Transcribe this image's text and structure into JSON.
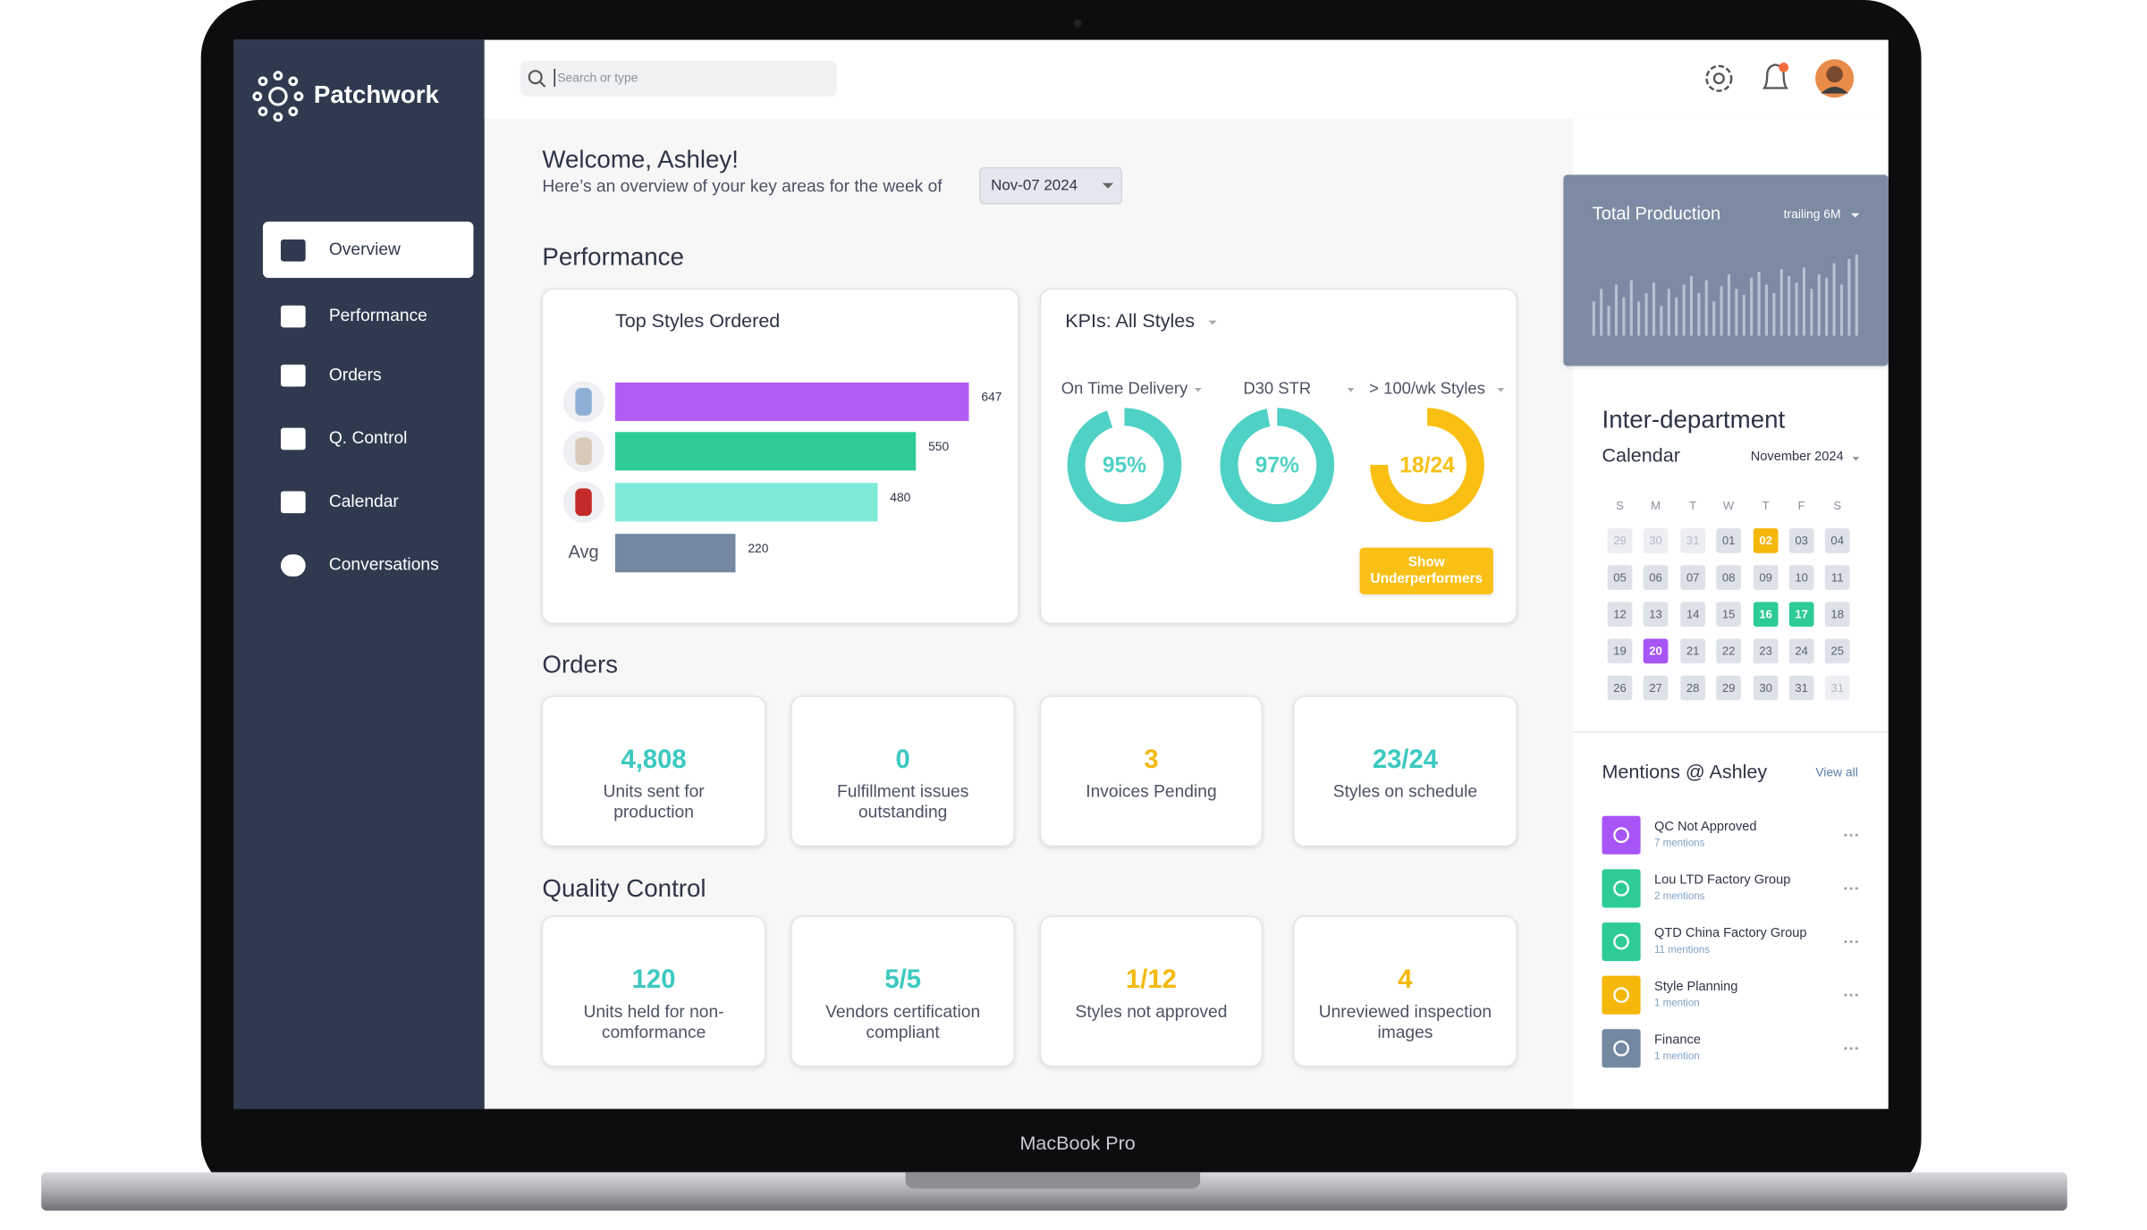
{
  "device_label": "MacBook Pro",
  "sidebar": {
    "brand": "Patchwork",
    "nav": [
      "Overview",
      "Performance",
      "Orders",
      "Q. Control",
      "Calendar",
      "Conversations"
    ]
  },
  "topbar": {
    "search_placeholder": "Search or type"
  },
  "welcome": {
    "title": "Welcome, Ashley!",
    "subtitle": "Here’s an overview of your key areas for the week of",
    "week": "Nov-07 2024"
  },
  "performance": {
    "heading": "Performance",
    "top_styles": {
      "type": "bar",
      "title": "Top Styles Ordered",
      "categories": [
        null,
        null,
        null,
        "Avg"
      ],
      "values": [
        647,
        550,
        480,
        220
      ],
      "colors": [
        "#b25cf6",
        "#2ecc95",
        "#7eebd9",
        "#7488a2"
      ]
    },
    "kpis": {
      "title": "KPIs: All Styles",
      "items": [
        {
          "label": "On Time Delivery",
          "value": 95,
          "max": 100,
          "value_label": "95%",
          "color": "#4fd1c5"
        },
        {
          "label": "D30 STR",
          "value": 97,
          "max": 100,
          "value_label": "97%",
          "color": "#4fd1c5"
        },
        {
          "label": "> 100/wk Styles",
          "value": 18,
          "max": 24,
          "value_label": "18/24",
          "color": "#f9c013"
        }
      ],
      "button": "Show Underperformers"
    }
  },
  "orders": {
    "heading": "Orders",
    "cards": [
      {
        "value": "4,808",
        "label": [
          "Units sent for",
          "production"
        ],
        "color": "#3cc9c0"
      },
      {
        "value": "0",
        "label": [
          "Fulfillment issues",
          "outstanding"
        ],
        "color": "#3cc9c0"
      },
      {
        "value": "3",
        "label": [
          "Invoices Pending"
        ],
        "color": "#f3b90c"
      },
      {
        "value": "23/24",
        "label": [
          "Styles on schedule"
        ],
        "color": "#3cc9c0"
      }
    ]
  },
  "quality_control": {
    "heading": "Quality Control",
    "cards": [
      {
        "value": "120",
        "label": [
          "Units held for non-",
          "comformance"
        ],
        "color": "#3cc9c0"
      },
      {
        "value": "5/5",
        "label": [
          "Vendors certification",
          "compliant"
        ],
        "color": "#3cc9c0"
      },
      {
        "value": "1/12",
        "label": [
          "Styles not approved"
        ],
        "color": "#f3b90c"
      },
      {
        "value": "4",
        "label": [
          "Unreviewed inspection",
          "images"
        ],
        "color": "#f3b90c"
      }
    ]
  },
  "total_production": {
    "type": "bar",
    "title": "Total Production",
    "period": "trailing 6M",
    "values": [
      40,
      55,
      35,
      60,
      45,
      65,
      40,
      50,
      62,
      35,
      55,
      45,
      60,
      70,
      50,
      65,
      40,
      58,
      72,
      55,
      48,
      68,
      75,
      60,
      50,
      78,
      70,
      62,
      80,
      55,
      72,
      68,
      85,
      60,
      90,
      95
    ],
    "ylim": [
      0,
      100
    ],
    "color": "#b8c2d3"
  },
  "calendar": {
    "title": "Inter-department",
    "subtitle": "Calendar",
    "month": "November 2024",
    "weekdays": [
      "S",
      "M",
      "T",
      "W",
      "T",
      "F",
      "S"
    ],
    "days": [
      {
        "d": "29",
        "muted": true
      },
      {
        "d": "30",
        "muted": true
      },
      {
        "d": "31",
        "muted": true
      },
      {
        "d": "01"
      },
      {
        "d": "02",
        "color": "#f5b70a"
      },
      {
        "d": "03"
      },
      {
        "d": "04"
      },
      {
        "d": "05"
      },
      {
        "d": "06"
      },
      {
        "d": "07"
      },
      {
        "d": "08"
      },
      {
        "d": "09"
      },
      {
        "d": "10"
      },
      {
        "d": "11"
      },
      {
        "d": "12"
      },
      {
        "d": "13"
      },
      {
        "d": "14"
      },
      {
        "d": "15"
      },
      {
        "d": "16",
        "color": "#2ecc95"
      },
      {
        "d": "17",
        "color": "#2ecc95"
      },
      {
        "d": "18"
      },
      {
        "d": "19"
      },
      {
        "d": "20",
        "color": "#a855f7"
      },
      {
        "d": "21"
      },
      {
        "d": "22"
      },
      {
        "d": "23"
      },
      {
        "d": "24"
      },
      {
        "d": "25"
      },
      {
        "d": "26"
      },
      {
        "d": "27"
      },
      {
        "d": "28"
      },
      {
        "d": "29"
      },
      {
        "d": "30"
      },
      {
        "d": "31"
      },
      {
        "d": "31",
        "muted": true
      }
    ]
  },
  "mentions": {
    "heading": "Mentions @ Ashley",
    "view_all": "View all",
    "items": [
      {
        "title": "QC Not Approved",
        "count": "7 mentions",
        "color": "#a855f7"
      },
      {
        "title": "Lou LTD Factory Group",
        "count": "2 mentions",
        "color": "#2ecc95"
      },
      {
        "title": "QTD China Factory Group",
        "count": "11 mentions",
        "color": "#2ecc95"
      },
      {
        "title": "Style Planning",
        "count": "1 mention",
        "color": "#f5b70a"
      },
      {
        "title": "Finance",
        "count": "1 mention",
        "color": "#7488a2"
      }
    ]
  }
}
